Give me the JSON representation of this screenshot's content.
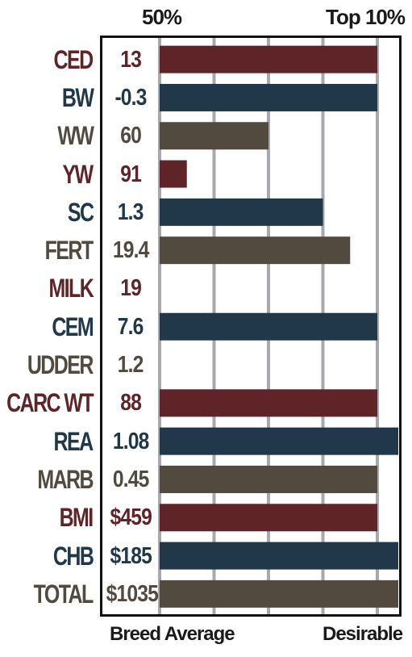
{
  "chart_data": {
    "type": "bar",
    "orientation": "horizontal",
    "scale_labels_top": [
      "50%",
      "Top 10%"
    ],
    "scale_labels_bottom": [
      "Breed Average",
      "Desirable"
    ],
    "xlim": [
      0,
      1
    ],
    "gridlines": [
      0,
      0.2222,
      0.4444,
      0.6667,
      0.8889
    ],
    "rows": [
      {
        "trait": "CED",
        "value_label": "13",
        "bar": 0.8889,
        "color": "#5e2428"
      },
      {
        "trait": "BW",
        "value_label": "-0.3",
        "bar": 0.8889,
        "color": "#203849"
      },
      {
        "trait": "WW",
        "value_label": "60",
        "bar": 0.4444,
        "color": "#524a3f"
      },
      {
        "trait": "YW",
        "value_label": "91",
        "bar": 0.1111,
        "color": "#5e2428"
      },
      {
        "trait": "SC",
        "value_label": "1.3",
        "bar": 0.6667,
        "color": "#203849"
      },
      {
        "trait": "FERT",
        "value_label": "19.4",
        "bar": 0.7778,
        "color": "#524a3f"
      },
      {
        "trait": "MILK",
        "value_label": "19",
        "bar": 0,
        "color": "#5e2428"
      },
      {
        "trait": "CEM",
        "value_label": "7.6",
        "bar": 0.8889,
        "color": "#203849"
      },
      {
        "trait": "UDDER",
        "value_label": "1.2",
        "bar": 0,
        "color": "#524a3f"
      },
      {
        "trait": "CARC WT",
        "value_label": "88",
        "bar": 0.8889,
        "color": "#5e2428"
      },
      {
        "trait": "REA",
        "value_label": "1.08",
        "bar": 0.9778,
        "color": "#203849"
      },
      {
        "trait": "MARB",
        "value_label": "0.45",
        "bar": 0.8889,
        "color": "#524a3f"
      },
      {
        "trait": "BMI",
        "value_label": "$459",
        "bar": 0.8889,
        "color": "#5e2428"
      },
      {
        "trait": "CHB",
        "value_label": "$185",
        "bar": 0.9778,
        "color": "#203849"
      },
      {
        "trait": "TOTAL",
        "value_label": "$1035",
        "bar": 0.9778,
        "color": "#524a3f"
      }
    ]
  },
  "colors": {
    "gridline": "#a8a8ad",
    "frame": "#111111"
  }
}
